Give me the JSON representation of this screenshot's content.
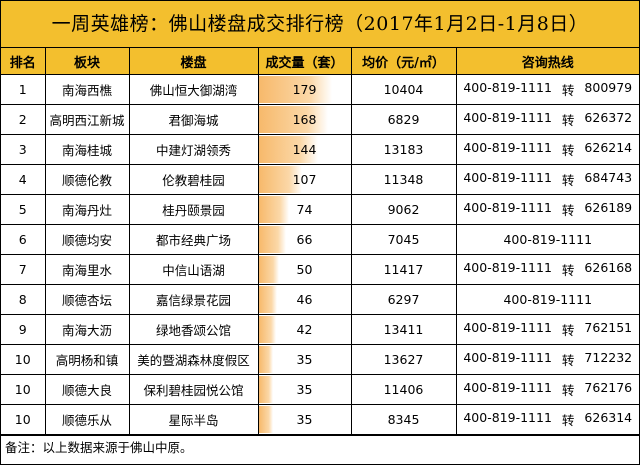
{
  "title": "一周英雄榜：佛山楼盘成交排行榜（2017年1月2日-1月8日）",
  "headers": {
    "rank": "排名",
    "area": "板块",
    "project": "楼盘",
    "deals": "成交量（套）",
    "price": "均价（元/㎡）",
    "contact": "咨询热线"
  },
  "max_deals": 179,
  "rows": [
    {
      "rank": "1",
      "area": "南海西樵",
      "project": "佛山恒大御湖湾",
      "deals": 179,
      "price": "10404",
      "phone": "400-819-1111",
      "ext_label": "转",
      "ext": "800979"
    },
    {
      "rank": "2",
      "area": "高明西江新城",
      "project": "君御海城",
      "deals": 168,
      "price": "6829",
      "phone": "400-819-1111",
      "ext_label": "转",
      "ext": "626372"
    },
    {
      "rank": "3",
      "area": "南海桂城",
      "project": "中建灯湖领秀",
      "deals": 144,
      "price": "13183",
      "phone": "400-819-1111",
      "ext_label": "转",
      "ext": "626214"
    },
    {
      "rank": "4",
      "area": "顺德伦教",
      "project": "伦教碧桂园",
      "deals": 107,
      "price": "11348",
      "phone": "400-819-1111",
      "ext_label": "转",
      "ext": "684743"
    },
    {
      "rank": "5",
      "area": "南海丹灶",
      "project": "桂丹颐景园",
      "deals": 74,
      "price": "9062",
      "phone": "400-819-1111",
      "ext_label": "转",
      "ext": "626189"
    },
    {
      "rank": "6",
      "area": "顺德均安",
      "project": "都市经典广场",
      "deals": 66,
      "price": "7045",
      "phone": "400-819-1111",
      "ext_label": "",
      "ext": ""
    },
    {
      "rank": "7",
      "area": "南海里水",
      "project": "中信山语湖",
      "deals": 50,
      "price": "11417",
      "phone": "400-819-1111",
      "ext_label": "转",
      "ext": "626168"
    },
    {
      "rank": "8",
      "area": "顺德杏坛",
      "project": "嘉信绿景花园",
      "deals": 46,
      "price": "6297",
      "phone": "400-819-1111",
      "ext_label": "",
      "ext": ""
    },
    {
      "rank": "9",
      "area": "南海大沥",
      "project": "绿地香颂公馆",
      "deals": 42,
      "price": "13411",
      "phone": "400-819-1111",
      "ext_label": "转",
      "ext": "762151"
    },
    {
      "rank": "10",
      "area": "高明杨和镇",
      "project": "美的暨湖森林度假区",
      "deals": 35,
      "price": "13627",
      "phone": "400-819-1111",
      "ext_label": "转",
      "ext": "712232"
    },
    {
      "rank": "10",
      "area": "顺德大良",
      "project": "保利碧桂园悦公馆",
      "deals": 35,
      "price": "11406",
      "phone": "400-819-1111",
      "ext_label": "转",
      "ext": "762176"
    },
    {
      "rank": "10",
      "area": "顺德乐从",
      "project": "星际半岛",
      "deals": 35,
      "price": "8345",
      "phone": "400-819-1111",
      "ext_label": "转",
      "ext": "626314"
    }
  ],
  "footer": "备注：以上数据来源于佛山中原。"
}
